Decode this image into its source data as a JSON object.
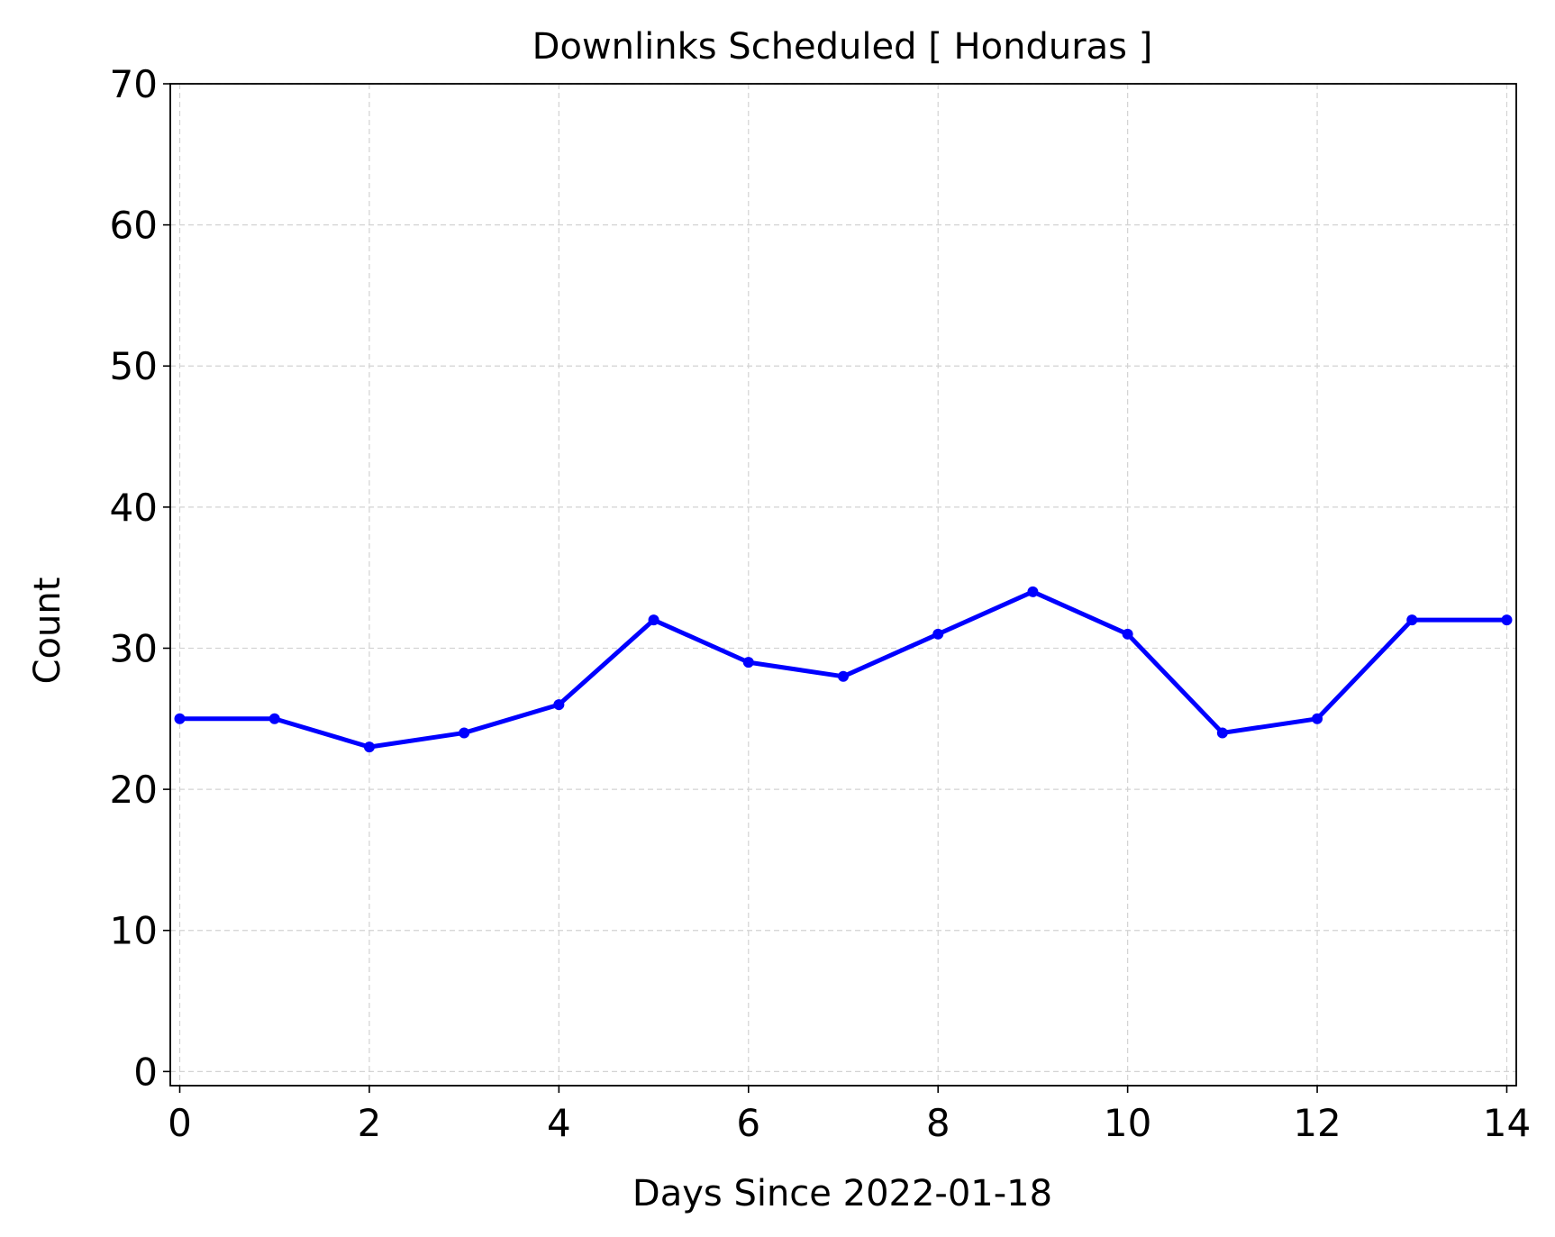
{
  "chart_data": {
    "type": "line",
    "title": "Downlinks Scheduled [ Honduras ]",
    "xlabel": "Days Since 2022-01-18",
    "ylabel": "Count",
    "xlim": [
      -0.1,
      14.1
    ],
    "ylim": [
      -1,
      70
    ],
    "xticks": [
      0,
      2,
      4,
      6,
      8,
      10,
      12,
      14
    ],
    "yticks": [
      0,
      10,
      20,
      30,
      40,
      50,
      60,
      70
    ],
    "grid": true,
    "series": [
      {
        "color": "#0000ff",
        "marker": "circle",
        "x": [
          0,
          1,
          2,
          3,
          4,
          5,
          6,
          7,
          8,
          9,
          10,
          11,
          12,
          13,
          14
        ],
        "y": [
          25,
          25,
          23,
          24,
          26,
          32,
          29,
          28,
          31,
          34,
          31,
          24,
          25,
          32,
          32
        ]
      }
    ]
  }
}
